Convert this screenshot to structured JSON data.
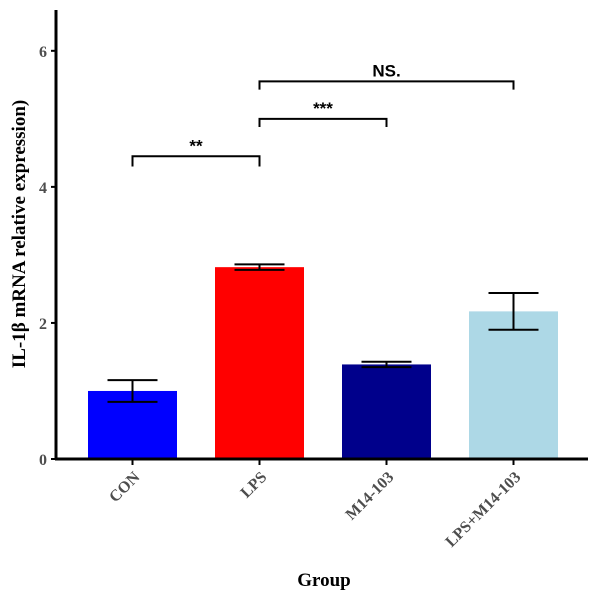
{
  "chart_data": {
    "type": "bar",
    "title": "",
    "xlabel": "Group",
    "ylabel": "IL-1β mRNA relative expression)",
    "categories": [
      "CON",
      "LPS",
      "M14-103",
      "LPS+M14-103"
    ],
    "values": [
      1.0,
      2.82,
      1.39,
      2.17
    ],
    "error_upper": [
      1.16,
      2.86,
      1.43,
      2.44
    ],
    "error_lower": [
      0.84,
      2.78,
      1.35,
      1.9
    ],
    "colors": [
      "#0000ff",
      "#ff0000",
      "#00008b",
      "#add8e6"
    ],
    "ylim": [
      0,
      6.6
    ],
    "yticks": [
      0,
      2,
      4,
      6
    ],
    "ytick_labels": [
      "0",
      "2",
      "4",
      "6"
    ],
    "grid": false,
    "significance": [
      {
        "from": 0,
        "to": 1,
        "label": "**",
        "y": 4.45,
        "drop": 0.15
      },
      {
        "from": 1,
        "to": 2,
        "label": "***",
        "y": 5.0,
        "drop": 0.12
      },
      {
        "from": 1,
        "to": 3,
        "label": "NS.",
        "y": 5.55,
        "drop": 0.12
      }
    ]
  }
}
